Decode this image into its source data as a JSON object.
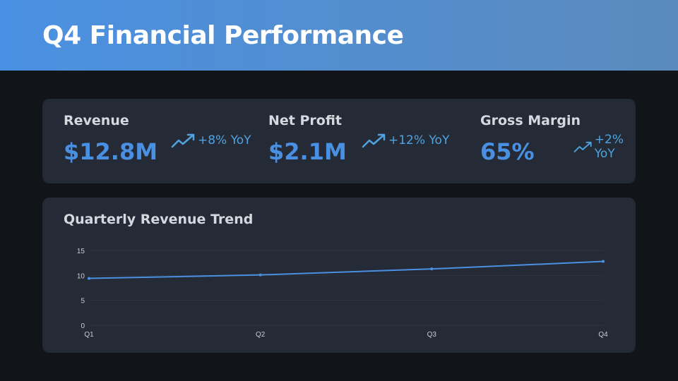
{
  "header": {
    "title": "Q4 Financial Performance"
  },
  "kpis": [
    {
      "label": "Revenue",
      "value": "$12.8M",
      "trend": "+8% YoY",
      "icon": "trending-up-icon"
    },
    {
      "label": "Net Profit",
      "value": "$2.1M",
      "trend": "+12% YoY",
      "icon": "trending-up-icon"
    },
    {
      "label": "Gross Margin",
      "value": "65%",
      "trend": "+2% YoY",
      "icon": "trending-up-icon"
    }
  ],
  "colors": {
    "accent": "#4a90e2",
    "trend": "#4ea3e0",
    "card": "#252b36"
  },
  "chart_data": {
    "type": "line",
    "title": "Quarterly Revenue Trend",
    "categories": [
      "Q1",
      "Q2",
      "Q3",
      "Q4"
    ],
    "series": [
      {
        "name": "Revenue",
        "values": [
          9.4,
          10.1,
          11.3,
          12.8
        ]
      }
    ],
    "ylim": [
      0,
      15
    ],
    "yticks": [
      0,
      5,
      10,
      15
    ],
    "grid": true,
    "xlabel": "",
    "ylabel": ""
  }
}
